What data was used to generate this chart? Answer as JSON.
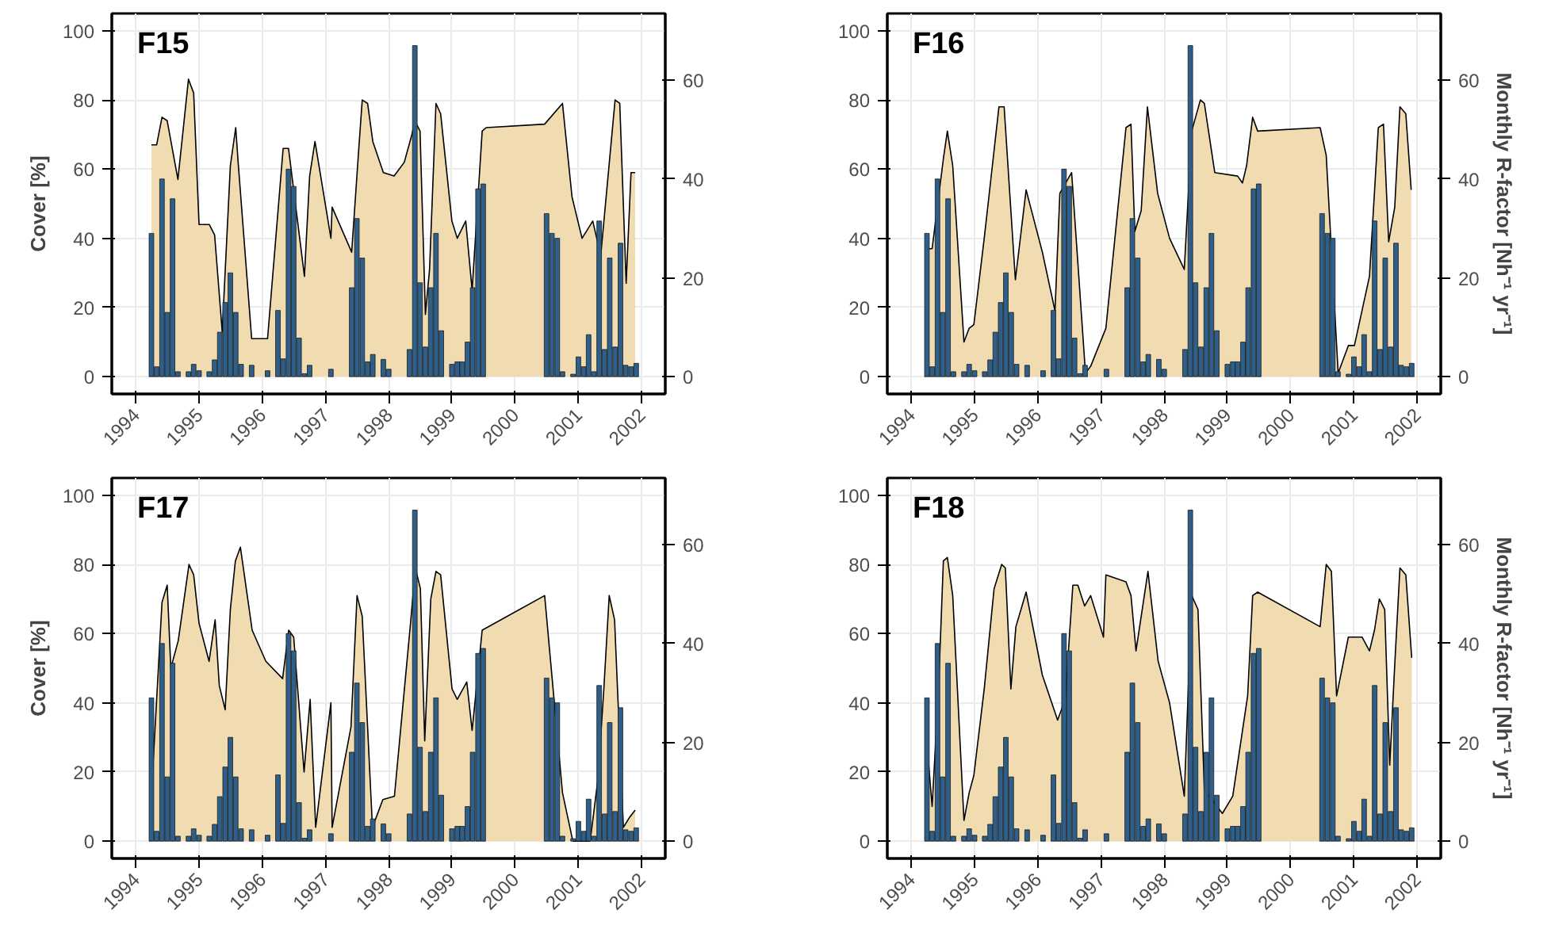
{
  "chart_data": [
    {
      "type": "area",
      "title": "F15",
      "ylabel": "Cover [%]",
      "xlim": [
        "1993-08-15",
        "2002-05-18"
      ],
      "xticks": [
        "1994",
        "1995",
        "1996",
        "1997",
        "1998",
        "1999",
        "2000",
        "2001",
        "2002"
      ],
      "ylim": [
        -5,
        105
      ],
      "yticks": [
        0,
        20,
        40,
        60,
        80,
        100
      ],
      "y2lim": [
        -3.5,
        73.5
      ],
      "y2ticks": [
        0,
        20,
        40,
        60
      ],
      "grid": true,
      "x": [
        "1994-04",
        "1994-05",
        "1994-06",
        "1994-07",
        "1994-08",
        "1994-09",
        "1994-10",
        "1994-11",
        "1994-12",
        "1995-01",
        "1995-02",
        "1995-03",
        "1995-04",
        "1995-05",
        "1995-06",
        "1995-07",
        "1995-08",
        "1995-09",
        "1995-10",
        "1995-11",
        "1995-12",
        "1996-01",
        "1996-02",
        "1996-03",
        "1996-04",
        "1996-05",
        "1996-06",
        "1996-07",
        "1996-08",
        "1996-09",
        "1996-10",
        "1996-11",
        "1996-12",
        "1997-01",
        "1997-02",
        "1997-03",
        "1997-04",
        "1997-05",
        "1997-06",
        "1997-07",
        "1997-08",
        "1997-09",
        "1997-10",
        "1997-11",
        "1997-12",
        "1998-01",
        "1998-02",
        "1998-03",
        "1998-04",
        "1998-05",
        "1998-06",
        "1998-07",
        "1998-08",
        "1998-09",
        "1998-10",
        "1998-11",
        "1998-12",
        "1999-01",
        "1999-02",
        "1999-03",
        "1999-04",
        "1999-05",
        "1999-06",
        "1999-07",
        "1999-08",
        "1999-09",
        "1999-10",
        "1999-11",
        "1999-12",
        "2000-01",
        "2000-02",
        "2000-03",
        "2000-04",
        "2000-05",
        "2000-06",
        "2000-07",
        "2000-08",
        "2000-09",
        "2000-10",
        "2000-11",
        "2000-12",
        "2001-01",
        "2001-02",
        "2001-03",
        "2001-04",
        "2001-05",
        "2001-06",
        "2001-07",
        "2001-08",
        "2001-09",
        "2001-10",
        "2001-11",
        "2001-12"
      ],
      "series": [
        {
          "color": "#f1dcb2",
          "x": [
            "1994-04-01",
            "1994-05-01",
            "1994-06-01",
            "1994-07-01",
            "1994-09-01",
            "1994-11-01",
            "1994-12-01",
            "1995-01-01",
            "1995-03-01",
            "1995-04-01",
            "1995-05-15",
            "1995-07-01",
            "1995-08-01",
            "1995-08-15",
            "1995-11-01",
            "1996-02-01",
            "1996-05-01",
            "1996-06-01",
            "1996-09-01",
            "1996-10-01",
            "1996-11-01",
            "1997-02-01",
            "1997-02-08",
            "1997-06-01",
            "1997-07-08",
            "1997-08-01",
            "1997-09-01",
            "1997-10-01",
            "1997-12-01",
            "1998-02-01",
            "1998-04-01",
            "1998-05-15",
            "1998-06-01",
            "1998-07-01",
            "1998-08-01",
            "1998-08-25",
            "1998-10-01",
            "1998-10-28",
            "1999-01-01",
            "1999-02-01",
            "1999-03-22",
            "1999-04-28",
            "1999-06-25",
            "1999-07-18",
            "2000-06-20",
            "2000-10-01",
            "2000-11-25",
            "2001-01-22",
            "2001-03-25",
            "2001-05-10",
            "2001-08-01",
            "2001-08-28",
            "2001-10-04",
            "2001-11-01",
            "2001-11-25"
          ],
          "values": [
            67,
            67,
            75,
            74,
            57,
            86,
            82,
            44,
            44,
            41,
            13,
            61,
            72,
            62,
            11,
            11,
            66,
            66,
            29,
            58,
            68,
            40,
            49,
            36,
            63,
            80,
            79,
            68,
            59,
            58,
            62,
            70,
            74,
            71,
            18,
            31,
            79,
            76,
            45,
            40,
            45,
            25,
            71,
            72,
            73,
            79,
            52,
            40,
            45,
            35,
            80,
            79,
            27,
            59,
            59
          ]
        },
        {
          "type": "bar",
          "axis": "y2",
          "color": "#2e5f8a",
          "values": [
            29,
            2,
            40,
            13,
            36,
            1,
            null,
            1,
            2.5,
            1.2,
            null,
            1,
            3.4,
            9,
            15,
            21,
            13,
            2.5,
            null,
            2.3,
            null,
            null,
            1.2,
            null,
            13.4,
            3.6,
            42,
            38.5,
            7.8,
            0.6,
            2.3,
            null,
            null,
            null,
            1.5,
            null,
            null,
            null,
            18,
            32,
            24,
            3,
            4.5,
            null,
            3.5,
            1.5,
            null,
            null,
            null,
            5.5,
            67,
            19,
            6,
            18,
            29,
            9.3,
            null,
            2.5,
            3,
            3,
            7,
            18,
            38,
            39,
            null,
            null,
            null,
            null,
            null,
            null,
            null,
            null,
            null,
            null,
            null,
            33,
            29,
            28,
            1,
            null,
            0.5,
            4,
            2,
            8.5,
            1,
            31.5,
            5.5,
            24,
            6,
            27,
            2.3,
            2,
            2.7
          ]
        }
      ]
    },
    {
      "type": "area",
      "title": "F16",
      "y2label": "Monthly R-factor [Nh⁻¹ yr⁻¹]",
      "xlim": [
        "1993-08-15",
        "2002-05-18"
      ],
      "xticks": [
        "1994",
        "1995",
        "1996",
        "1997",
        "1998",
        "1999",
        "2000",
        "2001",
        "2002"
      ],
      "ylim": [
        -5,
        105
      ],
      "yticks": [
        0,
        20,
        40,
        60,
        80,
        100
      ],
      "y2lim": [
        -3.5,
        73.5
      ],
      "y2ticks": [
        0,
        20,
        40,
        60
      ],
      "grid": true,
      "x": [
        "1994-04",
        "1994-05",
        "1994-06",
        "1994-07",
        "1994-08",
        "1994-09",
        "1994-10",
        "1994-11",
        "1994-12",
        "1995-01",
        "1995-02",
        "1995-03",
        "1995-04",
        "1995-05",
        "1995-06",
        "1995-07",
        "1995-08",
        "1995-09",
        "1995-10",
        "1995-11",
        "1995-12",
        "1996-01",
        "1996-02",
        "1996-03",
        "1996-04",
        "1996-05",
        "1996-06",
        "1996-07",
        "1996-08",
        "1996-09",
        "1996-10",
        "1996-11",
        "1996-12",
        "1997-01",
        "1997-02",
        "1997-03",
        "1997-04",
        "1997-05",
        "1997-06",
        "1997-07",
        "1997-08",
        "1997-09",
        "1997-10",
        "1997-11",
        "1997-12",
        "1998-01",
        "1998-02",
        "1998-03",
        "1998-04",
        "1998-05",
        "1998-06",
        "1998-07",
        "1998-08",
        "1998-09",
        "1998-10",
        "1998-11",
        "1998-12",
        "1999-01",
        "1999-02",
        "1999-03",
        "1999-04",
        "1999-05",
        "1999-06",
        "1999-07",
        "1999-08",
        "1999-09",
        "1999-10",
        "1999-11",
        "1999-12",
        "2000-01",
        "2000-02",
        "2000-03",
        "2000-04",
        "2000-05",
        "2000-06",
        "2000-07",
        "2000-08",
        "2000-09",
        "2000-10",
        "2000-11",
        "2000-12",
        "2001-01",
        "2001-02",
        "2001-03",
        "2001-04",
        "2001-05",
        "2001-06",
        "2001-07",
        "2001-08",
        "2001-09",
        "2001-10",
        "2001-11",
        "2001-12"
      ],
      "series": [
        {
          "color": "#f1dcb2",
          "x": [
            "1994-04-08",
            "1994-05-01",
            "1994-07-05",
            "1994-07-28",
            "1994-08-28",
            "1994-11-01",
            "1994-12-01",
            "1994-12-28",
            "1995-02-26",
            "1995-03-25",
            "1995-05-22",
            "1995-06-21",
            "1995-08-25",
            "1995-10-26",
            "1996-01-28",
            "1996-04-10",
            "1996-05-08",
            "1996-07-15",
            "1996-10-03",
            "1996-11-02",
            "1997-01-29",
            "1997-05-25",
            "1997-06-23",
            "1997-07-15",
            "1997-08-21",
            "1997-09-26",
            "1997-11-24",
            "1998-02-01",
            "1998-04-27",
            "1998-06-09",
            "1998-07-29",
            "1998-08-21",
            "1998-10-20",
            "1999-03-01",
            "1999-03-29",
            "1999-04-22",
            "1999-05-27",
            "1999-06-25",
            "2000-06-20",
            "2000-07-25",
            "2000-10-02",
            "2000-11-30",
            "2001-01-04",
            "2001-04-01",
            "2001-05-22",
            "2001-06-21",
            "2001-07-21",
            "2001-08-25",
            "2001-09-24",
            "2001-10-28",
            "2001-11-28"
          ],
          "values": [
            37,
            37,
            63,
            71,
            61,
            10,
            14,
            15,
            40,
            52,
            78,
            78,
            28,
            54,
            36,
            19,
            53,
            59,
            1,
            3,
            14,
            72,
            73,
            42,
            48,
            78,
            53,
            40,
            31,
            71,
            80,
            79,
            59,
            58,
            56,
            61,
            75,
            71,
            72,
            64,
            1,
            9,
            9,
            29,
            72,
            73,
            39,
            49,
            78,
            76,
            54
          ]
        },
        {
          "type": "bar",
          "axis": "y2",
          "color": "#2e5f8a",
          "values": [
            29,
            2,
            40,
            13,
            36,
            1,
            null,
            1,
            2.5,
            1.2,
            null,
            1,
            3.4,
            9,
            15,
            21,
            13,
            2.5,
            null,
            2.3,
            null,
            null,
            1.2,
            null,
            13.4,
            3.6,
            42,
            38.5,
            7.8,
            0.6,
            2.3,
            null,
            null,
            null,
            1.5,
            null,
            null,
            null,
            18,
            32,
            24,
            3,
            4.5,
            null,
            3.5,
            1.5,
            null,
            null,
            null,
            5.5,
            67,
            19,
            6,
            18,
            29,
            9.3,
            null,
            2.5,
            3,
            3,
            7,
            18,
            38,
            39,
            null,
            null,
            null,
            null,
            null,
            null,
            null,
            null,
            null,
            null,
            null,
            33,
            29,
            28,
            1,
            null,
            0.5,
            4,
            2,
            8.5,
            1,
            31.5,
            5.5,
            24,
            6,
            27,
            2.3,
            2,
            2.7
          ]
        }
      ]
    },
    {
      "type": "area",
      "title": "F17",
      "ylabel": "Cover [%]",
      "xlim": [
        "1993-08-15",
        "2002-05-18"
      ],
      "xticks": [
        "1994",
        "1995",
        "1996",
        "1997",
        "1998",
        "1999",
        "2000",
        "2001",
        "2002"
      ],
      "ylim": [
        -5,
        105
      ],
      "yticks": [
        0,
        20,
        40,
        60,
        80,
        100
      ],
      "y2lim": [
        -3.5,
        73.5
      ],
      "y2ticks": [
        0,
        20,
        40,
        60
      ],
      "grid": true,
      "x": [
        "1994-04",
        "1994-05",
        "1994-06",
        "1994-07",
        "1994-08",
        "1994-09",
        "1994-10",
        "1994-11",
        "1994-12",
        "1995-01",
        "1995-02",
        "1995-03",
        "1995-04",
        "1995-05",
        "1995-06",
        "1995-07",
        "1995-08",
        "1995-09",
        "1995-10",
        "1995-11",
        "1995-12",
        "1996-01",
        "1996-02",
        "1996-03",
        "1996-04",
        "1996-05",
        "1996-06",
        "1996-07",
        "1996-08",
        "1996-09",
        "1996-10",
        "1996-11",
        "1996-12",
        "1997-01",
        "1997-02",
        "1997-03",
        "1997-04",
        "1997-05",
        "1997-06",
        "1997-07",
        "1997-08",
        "1997-09",
        "1997-10",
        "1997-11",
        "1997-12",
        "1998-01",
        "1998-02",
        "1998-03",
        "1998-04",
        "1998-05",
        "1998-06",
        "1998-07",
        "1998-08",
        "1998-09",
        "1998-10",
        "1998-11",
        "1998-12",
        "1999-01",
        "1999-02",
        "1999-03",
        "1999-04",
        "1999-05",
        "1999-06",
        "1999-07",
        "1999-08",
        "1999-09",
        "1999-10",
        "1999-11",
        "1999-12",
        "2000-01",
        "2000-02",
        "2000-03",
        "2000-04",
        "2000-05",
        "2000-06",
        "2000-07",
        "2000-08",
        "2000-09",
        "2000-10",
        "2000-11",
        "2000-12",
        "2001-01",
        "2001-02",
        "2001-03",
        "2001-04",
        "2001-05",
        "2001-06",
        "2001-07",
        "2001-08",
        "2001-09",
        "2001-10",
        "2001-11",
        "2001-12"
      ],
      "series": [
        {
          "color": "#f1dcb2",
          "x": [
            "1994-04-08",
            "1994-06-01",
            "1994-07-01",
            "1994-07-22",
            "1994-09-03",
            "1994-11-04",
            "1994-12-01",
            "1995-01-01",
            "1995-02-28",
            "1995-04-04",
            "1995-04-28",
            "1995-06-01",
            "1995-07-01",
            "1995-07-30",
            "1995-08-28",
            "1995-11-04",
            "1996-01-22",
            "1996-04-28",
            "1996-06-02",
            "1996-07-01",
            "1996-08-30",
            "1996-10-04",
            "1996-11-05",
            "1997-02-01",
            "1997-02-08",
            "1997-05-28",
            "1997-07-02",
            "1997-08-01",
            "1997-09-29",
            "1997-11-28",
            "1998-02-03",
            "1998-05-07",
            "1998-06-04",
            "1998-07-03",
            "1998-07-28",
            "1998-09-01",
            "1998-10-01",
            "1998-10-28",
            "1999-01-02",
            "1999-02-01",
            "1999-03-28",
            "1999-04-28",
            "1999-06-25",
            "2000-06-20",
            "2000-10-01",
            "2000-11-30",
            "2001-03-10",
            "2001-04-24",
            "2001-05-28",
            "2001-06-28",
            "2001-07-29",
            "2001-09-18",
            "2001-10-25",
            "2001-11-25"
          ],
          "values": [
            20,
            69,
            74,
            50,
            58,
            80,
            77,
            63,
            52,
            64,
            45,
            38,
            67,
            81,
            85,
            61,
            52,
            47,
            61,
            59,
            20,
            41,
            4,
            40,
            4,
            33,
            71,
            65,
            4,
            12,
            13,
            63,
            79,
            73,
            29,
            70,
            78,
            77,
            44,
            41,
            46,
            32,
            61,
            71,
            14,
            0,
            0,
            18,
            44,
            71,
            64,
            4,
            7,
            9
          ]
        },
        {
          "type": "bar",
          "axis": "y2",
          "color": "#2e5f8a",
          "values": [
            29,
            2,
            40,
            13,
            36,
            1,
            null,
            1,
            2.5,
            1.2,
            null,
            1,
            3.4,
            9,
            15,
            21,
            13,
            2.5,
            null,
            2.3,
            null,
            null,
            1.2,
            null,
            13.4,
            3.6,
            42,
            38.5,
            7.8,
            0.6,
            2.3,
            null,
            null,
            null,
            1.5,
            null,
            null,
            null,
            18,
            32,
            24,
            3,
            4.5,
            null,
            3.5,
            1.5,
            null,
            null,
            null,
            5.5,
            67,
            19,
            6,
            18,
            29,
            9.3,
            null,
            2.5,
            3,
            3,
            7,
            18,
            38,
            39,
            null,
            null,
            null,
            null,
            null,
            null,
            null,
            null,
            null,
            null,
            null,
            33,
            29,
            28,
            1,
            null,
            0.5,
            4,
            2,
            8.5,
            1,
            31.5,
            5.5,
            24,
            6,
            27,
            2.3,
            2,
            2.7
          ]
        }
      ]
    },
    {
      "type": "area",
      "title": "F18",
      "y2label": "Monthly R-factor [Nh⁻¹ yr⁻¹]",
      "xlim": [
        "1993-08-15",
        "2002-05-18"
      ],
      "xticks": [
        "1994",
        "1995",
        "1996",
        "1997",
        "1998",
        "1999",
        "2000",
        "2001",
        "2002"
      ],
      "ylim": [
        -5,
        105
      ],
      "yticks": [
        0,
        20,
        40,
        60,
        80,
        100
      ],
      "y2lim": [
        -3.5,
        73.5
      ],
      "y2ticks": [
        0,
        20,
        40,
        60
      ],
      "grid": true,
      "x": [
        "1994-04",
        "1994-05",
        "1994-06",
        "1994-07",
        "1994-08",
        "1994-09",
        "1994-10",
        "1994-11",
        "1994-12",
        "1995-01",
        "1995-02",
        "1995-03",
        "1995-04",
        "1995-05",
        "1995-06",
        "1995-07",
        "1995-08",
        "1995-09",
        "1995-10",
        "1995-11",
        "1995-12",
        "1996-01",
        "1996-02",
        "1996-03",
        "1996-04",
        "1996-05",
        "1996-06",
        "1996-07",
        "1996-08",
        "1996-09",
        "1996-10",
        "1996-11",
        "1996-12",
        "1997-01",
        "1997-02",
        "1997-03",
        "1997-04",
        "1997-05",
        "1997-06",
        "1997-07",
        "1997-08",
        "1997-09",
        "1997-10",
        "1997-11",
        "1997-12",
        "1998-01",
        "1998-02",
        "1998-03",
        "1998-04",
        "1998-05",
        "1998-06",
        "1998-07",
        "1998-08",
        "1998-09",
        "1998-10",
        "1998-11",
        "1998-12",
        "1999-01",
        "1999-02",
        "1999-03",
        "1999-04",
        "1999-05",
        "1999-06",
        "1999-07",
        "1999-08",
        "1999-09",
        "1999-10",
        "1999-11",
        "1999-12",
        "2000-01",
        "2000-02",
        "2000-03",
        "2000-04",
        "2000-05",
        "2000-06",
        "2000-07",
        "2000-08",
        "2000-09",
        "2000-10",
        "2000-11",
        "2000-12",
        "2001-01",
        "2001-02",
        "2001-03",
        "2001-04",
        "2001-05",
        "2001-06",
        "2001-07",
        "2001-08",
        "2001-09",
        "2001-10",
        "2001-11",
        "2001-12"
      ],
      "series": [
        {
          "color": "#f1dcb2",
          "x": [
            "1994-04-03",
            "1994-05-01",
            "1994-06-07",
            "1994-07-05",
            "1994-07-28",
            "1994-08-28",
            "1994-11-01",
            "1994-12-01",
            "1994-12-28",
            "1995-02-26",
            "1995-04-24",
            "1995-06-07",
            "1995-06-28",
            "1995-07-30",
            "1995-08-28",
            "1995-10-26",
            "1996-01-28",
            "1996-04-25",
            "1996-06-08",
            "1996-07-22",
            "1996-08-20",
            "1996-09-28",
            "1996-11-02",
            "1997-01-15",
            "1997-01-29",
            "1997-05-25",
            "1997-06-23",
            "1997-07-22",
            "1997-09-29",
            "1997-11-27",
            "1998-02-01",
            "1998-04-27",
            "1998-06-09",
            "1998-07-15",
            "1998-08-21",
            "1998-12-03",
            "1999-02-01",
            "1999-04-28",
            "1999-05-27",
            "1999-06-25",
            "2000-06-20",
            "2000-07-25",
            "2000-08-24",
            "2000-09-23",
            "2000-11-30",
            "2001-02-17",
            "2001-04-01",
            "2001-04-30",
            "2001-05-28",
            "2001-06-28",
            "2001-07-27",
            "2001-08-25",
            "2001-09-24",
            "2001-10-28",
            "2001-12-01"
          ],
          "values": [
            27,
            10,
            44,
            81,
            82,
            71,
            6,
            14,
            19,
            44,
            73,
            80,
            79,
            44,
            62,
            72,
            48,
            35,
            41,
            74,
            74,
            68,
            71,
            59,
            77,
            75,
            71,
            55,
            78,
            52,
            40,
            13,
            71,
            67,
            15,
            8,
            13,
            42,
            71,
            72,
            62,
            80,
            78,
            42,
            59,
            59,
            55,
            61,
            70,
            67,
            22,
            51,
            79,
            77,
            53
          ]
        },
        {
          "type": "bar",
          "axis": "y2",
          "color": "#2e5f8a",
          "values": [
            29,
            2,
            40,
            13,
            36,
            1,
            null,
            1,
            2.5,
            1.2,
            null,
            1,
            3.4,
            9,
            15,
            21,
            13,
            2.5,
            null,
            2.3,
            null,
            null,
            1.2,
            null,
            13.4,
            3.6,
            42,
            38.5,
            7.8,
            0.6,
            2.3,
            null,
            null,
            null,
            1.5,
            null,
            null,
            null,
            18,
            32,
            24,
            3,
            4.5,
            null,
            3.5,
            1.5,
            null,
            null,
            null,
            5.5,
            67,
            19,
            6,
            18,
            29,
            9.3,
            null,
            2.5,
            3,
            3,
            7,
            18,
            38,
            39,
            null,
            null,
            null,
            null,
            null,
            null,
            null,
            null,
            null,
            null,
            null,
            33,
            29,
            28,
            1,
            null,
            0.5,
            4,
            2,
            8.5,
            1,
            31.5,
            5.5,
            24,
            6,
            27,
            2.3,
            2,
            2.7
          ]
        }
      ]
    }
  ]
}
